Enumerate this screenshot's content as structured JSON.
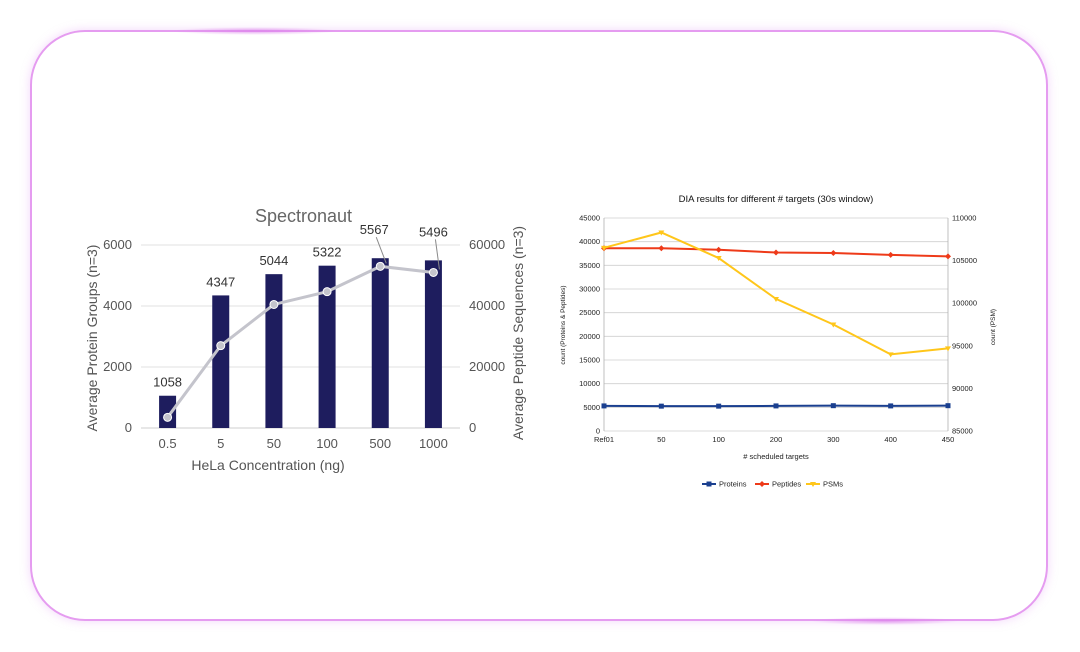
{
  "colors": {
    "frame": "#e59cf0",
    "bar": "#1e1d5e",
    "line_left": "#c4c4cc",
    "proteins": "#1a3f8f",
    "peptides": "#ee3a19",
    "psms": "#ffc61a"
  },
  "chart_data": [
    {
      "type": "bar",
      "title": "Spectronaut",
      "xlabel": "HeLa Concentration (ng)",
      "ylabel": "Average Protein Groups (n=3)",
      "y2label": "Average Peptide Sequences (n=3)",
      "categories": [
        "0.5",
        "5",
        "50",
        "100",
        "500",
        "1000"
      ],
      "ylim": [
        0,
        6000
      ],
      "y2lim": [
        0,
        60000
      ],
      "yticks": [
        "0",
        "2000",
        "4000",
        "6000"
      ],
      "y2ticks": [
        "0",
        "20000",
        "40000",
        "60000"
      ],
      "series": [
        {
          "type": "bar",
          "axis": "left",
          "values": [
            1058,
            4347,
            5044,
            5322,
            5567,
            5496
          ],
          "labels": [
            "1058",
            "4347",
            "5044",
            "5322",
            "5567",
            "5496"
          ]
        },
        {
          "type": "line",
          "axis": "right",
          "values": [
            3500,
            27000,
            40500,
            44700,
            53000,
            51000
          ]
        }
      ]
    },
    {
      "type": "line",
      "title": "DIA results for different # targets (30s window)",
      "xlabel": "# scheduled targets",
      "ylabel": "count (Proteins & Peptides)",
      "y2label": "count (PSM)",
      "categories": [
        "Ref01",
        "50",
        "100",
        "200",
        "300",
        "400",
        "450"
      ],
      "ylim": [
        0,
        45000
      ],
      "y2lim": [
        85000,
        110000
      ],
      "yticks": [
        "0",
        "5000",
        "10000",
        "15000",
        "20000",
        "25000",
        "30000",
        "35000",
        "40000",
        "45000"
      ],
      "y2ticks": [
        "85000",
        "90000",
        "95000",
        "100000",
        "105000",
        "110000"
      ],
      "series": [
        {
          "name": "Proteins",
          "axis": "left",
          "values": [
            5300,
            5250,
            5250,
            5300,
            5350,
            5300,
            5350
          ]
        },
        {
          "name": "Peptides",
          "axis": "left",
          "values": [
            38600,
            38600,
            38300,
            37700,
            37600,
            37200,
            36900
          ]
        },
        {
          "name": "PSMs",
          "axis": "right",
          "values": [
            106500,
            108300,
            105300,
            100500,
            97500,
            94000,
            94700
          ]
        }
      ],
      "legend": "bottom"
    }
  ]
}
